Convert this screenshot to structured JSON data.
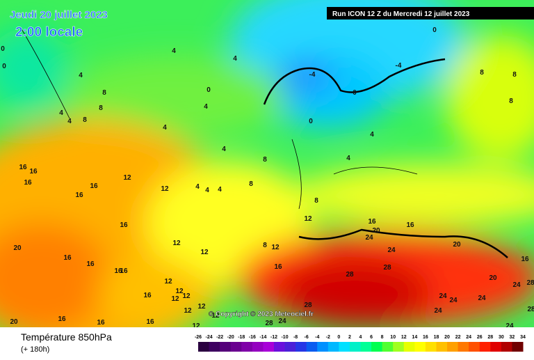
{
  "header": {
    "date": "Jeudi 20 juillet 2023",
    "time": "2:00 locale",
    "run": "Run ICON 12 Z du Mercredi 12 juillet 2023"
  },
  "footer": {
    "title": "Température 850hPa",
    "offset": "(+ 180h)",
    "copyright": "© Copyright © 2023 Meteociel.fr"
  },
  "legend": {
    "ticks": [
      -26,
      -24,
      -22,
      -20,
      -18,
      -16,
      -14,
      -12,
      -10,
      -8,
      -6,
      -4,
      -2,
      0,
      2,
      4,
      6,
      8,
      10,
      12,
      14,
      16,
      18,
      20,
      22,
      24,
      26,
      28,
      30,
      32,
      34
    ],
    "colors": [
      "#2a0040",
      "#3d0060",
      "#55007a",
      "#6a0090",
      "#7f00a8",
      "#9400c0",
      "#a800d8",
      "#6a10dc",
      "#4b20d8",
      "#2636e6",
      "#0a5cf0",
      "#0090ff",
      "#00b8ff",
      "#00e0ff",
      "#00f0c8",
      "#00ff96",
      "#00ff50",
      "#50ff30",
      "#a0ff20",
      "#e6ff00",
      "#ffff00",
      "#ffe000",
      "#ffc000",
      "#ffa000",
      "#ff7800",
      "#ff5000",
      "#ff2000",
      "#e00000",
      "#b00000",
      "#700000"
    ]
  },
  "map": {
    "contour_labels": [
      4,
      4,
      4,
      8,
      0,
      4,
      8,
      4,
      8,
      4,
      4,
      4,
      8,
      4,
      4,
      0,
      -4,
      0,
      -4,
      0,
      8,
      8,
      8,
      12,
      12,
      4,
      4,
      4,
      8,
      8,
      12,
      16,
      16,
      16,
      16,
      16,
      16,
      12,
      12,
      8,
      12,
      16,
      20,
      16,
      16,
      16,
      16,
      12,
      16,
      12,
      12,
      12,
      12,
      12,
      12,
      12,
      16,
      20,
      24,
      16,
      20,
      24,
      28,
      28,
      28,
      20,
      24,
      28,
      24,
      24,
      24,
      24,
      24,
      28,
      24,
      28,
      20,
      16,
      16,
      16,
      16,
      0,
      0
    ]
  }
}
